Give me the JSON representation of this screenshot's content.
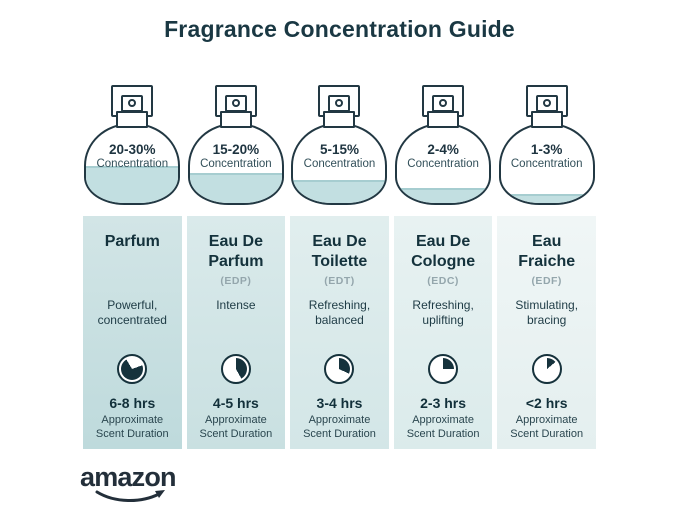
{
  "title": "Fragrance Concentration Guide",
  "brand": {
    "logo_text": "amazon"
  },
  "colors": {
    "ink": "#223843",
    "pie_fill": "#16323c",
    "liquid": "#c2dfe1",
    "liquid_line": "#a6cdd0",
    "title_color": "#1a3843"
  },
  "columns": [
    {
      "concentration": "20-30%",
      "concentration_label": "Concentration",
      "fill_percent": 48,
      "name": "Parfum",
      "abbrev": "",
      "description": "Powerful, concentrated",
      "duration": "6-8 hrs",
      "duration_label": "Approximate Scent Duration",
      "pie_percent": 72,
      "pie_start_deg": 70,
      "bg_top": "#d2e5e6",
      "bg_bottom": "#bedadc"
    },
    {
      "concentration": "15-20%",
      "concentration_label": "Concentration",
      "fill_percent": 38,
      "name": "Eau De Parfum",
      "abbrev": "(EDP)",
      "description": "Intense",
      "duration": "4-5 hrs",
      "duration_label": "Approximate Scent Duration",
      "pie_percent": 42,
      "pie_start_deg": 0,
      "bg_top": "#daeaeb",
      "bg_bottom": "#c9e0e1"
    },
    {
      "concentration": "5-15%",
      "concentration_label": "Concentration",
      "fill_percent": 29,
      "name": "Eau De Toilette",
      "abbrev": "(EDT)",
      "description": "Refreshing, balanced",
      "duration": "3-4 hrs",
      "duration_label": "Approximate Scent Duration",
      "pie_percent": 32,
      "pie_start_deg": 0,
      "bg_top": "#e1eeee",
      "bg_bottom": "#d3e6e7"
    },
    {
      "concentration": "2-4%",
      "concentration_label": "Concentration",
      "fill_percent": 19,
      "name": "Eau De Cologne",
      "abbrev": "(EDC)",
      "description": "Refreshing, uplifting",
      "duration": "2-3 hrs",
      "duration_label": "Approximate Scent Duration",
      "pie_percent": 25,
      "pie_start_deg": 0,
      "bg_top": "#e8f2f2",
      "bg_bottom": "#dbebeb"
    },
    {
      "concentration": "1-3%",
      "concentration_label": "Concentration",
      "fill_percent": 12,
      "name": "Eau Fraiche",
      "abbrev": "(EDF)",
      "description": "Stimulating, bracing",
      "duration": "<2 hrs",
      "duration_label": "Approximate Scent Duration",
      "pie_percent": 14,
      "pie_start_deg": 0,
      "bg_top": "#f0f6f6",
      "bg_bottom": "#e4efef"
    }
  ]
}
